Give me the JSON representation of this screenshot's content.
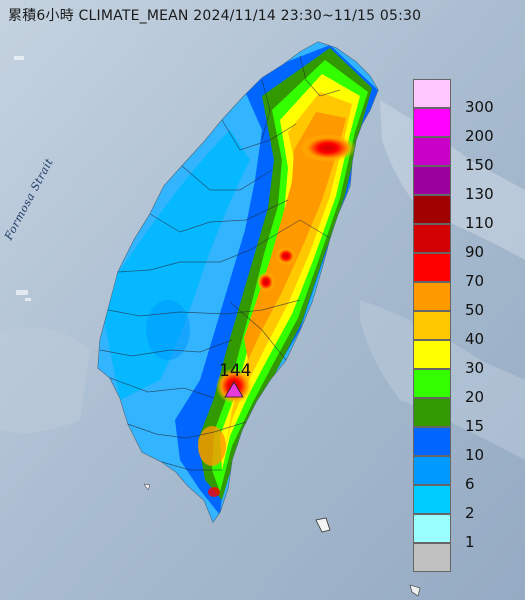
{
  "title": "累積6小時 CLIMATE_MEAN 2024/11/14 23:30~11/15 05:30",
  "map_label": "Formosa Strait",
  "max_marker": {
    "value": "144",
    "shape": "triangle",
    "color": "#e83ad9"
  },
  "legend": [
    {
      "label": "300",
      "color": "#ffc6ff"
    },
    {
      "label": "200",
      "color": "#ff00ff"
    },
    {
      "label": "150",
      "color": "#c800c8"
    },
    {
      "label": "130",
      "color": "#9c009c"
    },
    {
      "label": "110",
      "color": "#a00000"
    },
    {
      "label": "90",
      "color": "#d20000"
    },
    {
      "label": "70",
      "color": "#ff0000"
    },
    {
      "label": "50",
      "color": "#ff9900"
    },
    {
      "label": "40",
      "color": "#ffc800"
    },
    {
      "label": "30",
      "color": "#ffff00"
    },
    {
      "label": "20",
      "color": "#33ff00"
    },
    {
      "label": "15",
      "color": "#339900"
    },
    {
      "label": "10",
      "color": "#0066ff"
    },
    {
      "label": "6",
      "color": "#0099ff"
    },
    {
      "label": "2",
      "color": "#00ccff"
    },
    {
      "label": "1",
      "color": "#99ffff"
    },
    {
      "label": "",
      "color": "#c0c0c0"
    }
  ]
}
